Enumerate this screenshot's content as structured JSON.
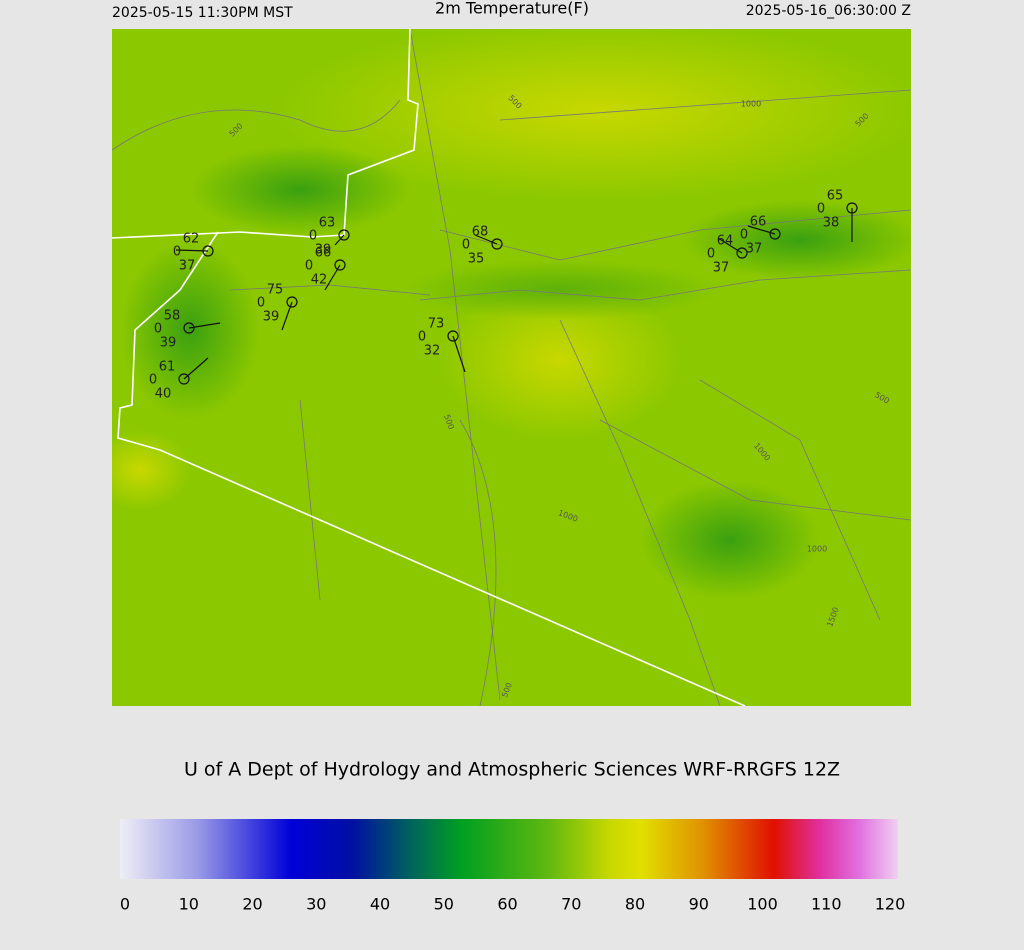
{
  "header": {
    "left": "2025-05-15 11:30PM MST",
    "title": "2m Temperature(F)",
    "right": "2025-05-16_06:30:00 Z"
  },
  "stations": [
    {
      "temperature": 62,
      "wind": 0,
      "dewpoint": 37
    },
    {
      "temperature": 63,
      "wind": 0,
      "dewpoint": 39
    },
    {
      "temperature": 66,
      "wind": 0,
      "dewpoint": 42
    },
    {
      "temperature": 75,
      "wind": 0,
      "dewpoint": 39
    },
    {
      "temperature": 58,
      "wind": 0,
      "dewpoint": 39
    },
    {
      "temperature": 61,
      "wind": 0,
      "dewpoint": 40
    },
    {
      "temperature": 68,
      "wind": 0,
      "dewpoint": 35
    },
    {
      "temperature": 73,
      "wind": 0,
      "dewpoint": 32
    },
    {
      "temperature": 64,
      "wind": 0,
      "dewpoint": 37
    },
    {
      "temperature": 66,
      "wind": 0,
      "dewpoint": 37
    },
    {
      "temperature": 65,
      "wind": 0,
      "dewpoint": 38
    }
  ],
  "contour_labels": [
    "500",
    "500",
    "500",
    "500",
    "500",
    "500",
    "1000",
    "1000",
    "1000",
    "1000",
    "1500"
  ],
  "credit": "U of A Dept of Hydrology and Atmospheric Sciences WRF-RRGFS 12Z",
  "colorbar": {
    "range": [
      0,
      120
    ],
    "ticks": [
      0,
      10,
      20,
      30,
      40,
      50,
      60,
      70,
      80,
      90,
      100,
      110,
      120
    ]
  }
}
